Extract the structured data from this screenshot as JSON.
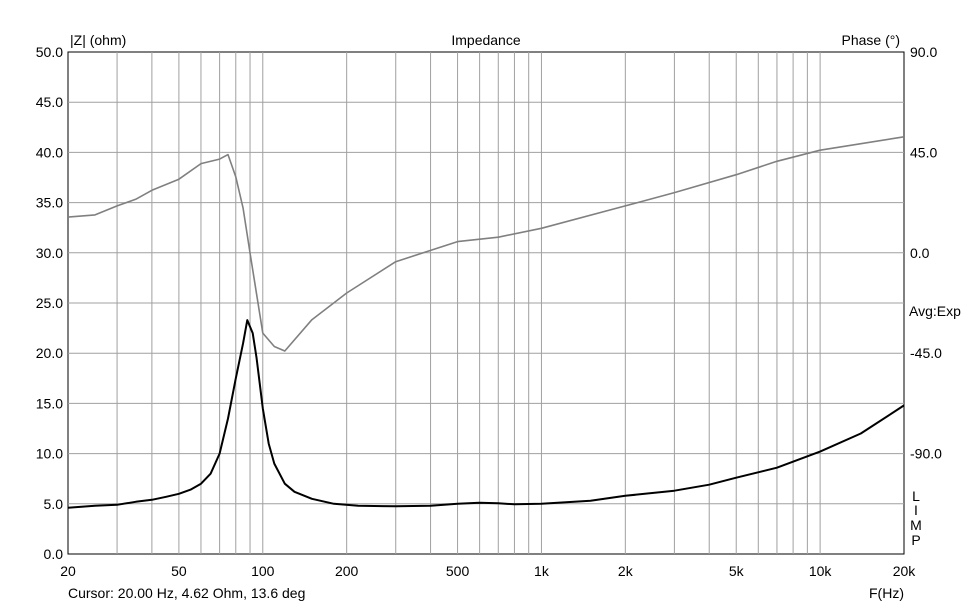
{
  "chart_data": {
    "type": "line",
    "title": "Impedance",
    "y_left_label": "|Z| (ohm)",
    "y_right_label": "Phase (°)",
    "xlabel": "F(Hz)",
    "x_scale": "log",
    "xlim": [
      20,
      20000
    ],
    "ylim_left": [
      0,
      50
    ],
    "ylim_right": [
      -135,
      90
    ],
    "grid": true,
    "x_ticks": [
      20,
      50,
      100,
      200,
      500,
      1000,
      2000,
      5000,
      10000,
      20000
    ],
    "x_tick_labels": [
      "20",
      "50",
      "100",
      "200",
      "500",
      "1k",
      "2k",
      "5k",
      "10k",
      "20k"
    ],
    "y_left_ticks": [
      0,
      5,
      10,
      15,
      20,
      25,
      30,
      35,
      40,
      45,
      50
    ],
    "y_left_tick_labels": [
      "0.0",
      "5.0",
      "10.0",
      "15.0",
      "20.0",
      "25.0",
      "30.0",
      "35.0",
      "40.0",
      "45.0",
      "50.0"
    ],
    "y_right_ticks": [
      -90,
      -45,
      0,
      45,
      90
    ],
    "y_right_tick_labels": [
      "-90.0",
      "-45.0",
      "0.0",
      "45.0",
      "90.0"
    ],
    "side_label": "Avg:Exp",
    "side_letters": [
      "L",
      "I",
      "M",
      "P"
    ],
    "cursor_text": "Cursor: 20.00 Hz, 4.62 Ohm, 13.6 deg",
    "series": [
      {
        "axis": "left",
        "color": "#000000",
        "x": [
          20,
          25,
          30,
          35,
          40,
          45,
          50,
          55,
          60,
          65,
          70,
          75,
          80,
          85,
          88,
          92,
          95,
          100,
          105,
          110,
          120,
          130,
          150,
          180,
          220,
          300,
          400,
          500,
          600,
          700,
          800,
          1000,
          1500,
          2000,
          3000,
          4000,
          5000,
          7000,
          10000,
          14000,
          20000
        ],
        "y": [
          4.6,
          4.8,
          4.9,
          5.2,
          5.4,
          5.7,
          6.0,
          6.4,
          7.0,
          8.0,
          10.0,
          13.5,
          17.5,
          21.0,
          23.3,
          22.0,
          19.5,
          14.5,
          11.0,
          9.0,
          7.0,
          6.2,
          5.5,
          5.0,
          4.8,
          4.75,
          4.8,
          5.0,
          5.1,
          5.05,
          4.95,
          5.0,
          5.3,
          5.8,
          6.3,
          6.9,
          7.6,
          8.6,
          10.2,
          12.0,
          14.8
        ]
      },
      {
        "axis": "right",
        "color": "#808080",
        "x": [
          20,
          25,
          30,
          35,
          40,
          50,
          60,
          70,
          75,
          80,
          85,
          90,
          100,
          110,
          120,
          150,
          200,
          300,
          500,
          700,
          1000,
          2000,
          3000,
          5000,
          7000,
          10000,
          20000
        ],
        "y": [
          16,
          17,
          21,
          24,
          28,
          33,
          40,
          42,
          44,
          34,
          20,
          0,
          -36,
          -42,
          -44,
          -30,
          -18,
          -4,
          5,
          7,
          11,
          21,
          27,
          35,
          41,
          46,
          52
        ]
      }
    ]
  }
}
